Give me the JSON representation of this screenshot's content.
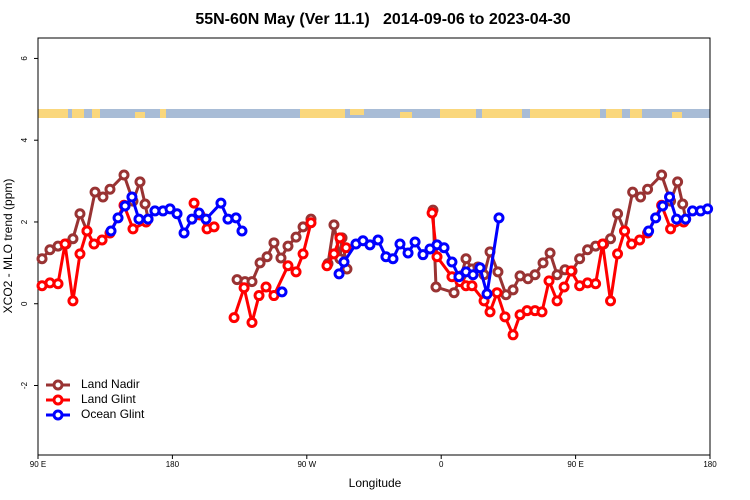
{
  "chart_data": {
    "type": "line",
    "title": "55N-60N May (Ver 11.1)   2014-09-06 to 2023-04-30",
    "x_label": "Longitude",
    "y_label": "XCO2 - MLO trend (ppm)",
    "xlim": [
      90,
      540
    ],
    "ylim": [
      -3.7,
      6.5
    ],
    "xticks": [
      {
        "value": 90,
        "label": "90 E"
      },
      {
        "value": 180,
        "label": "180"
      },
      {
        "value": 270,
        "label": "90 W"
      },
      {
        "value": 360,
        "label": "0"
      },
      {
        "value": 450,
        "label": "90 E"
      },
      {
        "value": 540,
        "label": "180"
      }
    ],
    "yticks": [
      -2,
      0,
      2,
      4,
      6
    ],
    "grid": false,
    "legend": "bottomleft",
    "series": [
      {
        "name": "Land Nadir",
        "color": "#993333",
        "x": [
          92.7,
          98.0,
          103.4,
          108.8,
          113.4,
          118.1,
          122.8,
          128.2,
          133.5,
          138.2,
          147.6,
          153.6,
          158.3,
          161.7,
          163.7,
          null,
          223.3,
          228.6,
          233.3,
          238.7,
          243.4,
          248.0,
          252.7,
          257.4,
          262.8,
          267.5,
          272.8,
          null,
          284.2,
          288.2,
          292.2,
          293.6,
          296.9,
          null,
          354.5,
          356.5,
          368.6,
          373.3,
          376.6,
          380.6,
          384.6,
          388.7,
          392.7,
          398.0,
          403.4,
          408.1,
          412.8,
          418.1,
          422.8,
          428.2,
          432.9,
          437.6,
          442.9,
          447.6,
          452.7,
          458.0,
          463.4,
          468.8,
          473.4,
          478.1,
          482.8,
          488.2,
          493.5,
          498.2,
          507.6,
          513.6,
          518.3,
          521.7,
          523.7
        ],
        "values": [
          1.1,
          1.32,
          1.41,
          1.46,
          1.59,
          2.2,
          1.78,
          2.73,
          2.61,
          2.8,
          3.15,
          2.51,
          2.98,
          2.44,
          2.07,
          null,
          0.59,
          0.54,
          0.54,
          1.0,
          1.15,
          1.49,
          1.12,
          1.41,
          1.63,
          1.88,
          2.07,
          null,
          0.98,
          1.93,
          1.1,
          1.61,
          0.85,
          null,
          2.29,
          0.41,
          0.27,
          0.68,
          1.1,
          0.85,
          0.9,
          0.71,
          1.27,
          0.78,
          0.22,
          0.34,
          0.68,
          0.61,
          0.71,
          1.0,
          1.24,
          0.71,
          0.83,
          0.8,
          1.1,
          1.32,
          1.41,
          1.46,
          1.59,
          2.2,
          1.78,
          2.73,
          2.61,
          2.8,
          3.15,
          2.51,
          2.98,
          2.44,
          2.07
        ]
      },
      {
        "name": "Land Glint",
        "color": "#ff0000",
        "x": [
          92.7,
          98.0,
          103.4,
          108.1,
          113.4,
          118.1,
          122.8,
          127.5,
          132.9,
          138.2,
          147.6,
          153.6,
          162.4,
          null,
          194.5,
          198.5,
          203.2,
          207.9,
          null,
          221.3,
          228.0,
          233.3,
          238.0,
          242.7,
          248.0,
          257.4,
          262.8,
          267.5,
          272.8,
          null,
          283.5,
          288.2,
          292.2,
          296.3,
          null,
          353.9,
          357.2,
          367.2,
          372.6,
          376.6,
          380.6,
          388.7,
          392.7,
          397.4,
          402.7,
          408.1,
          412.8,
          417.5,
          422.8,
          427.5,
          432.2,
          437.6,
          442.3,
          447.0,
          452.7,
          458.0,
          463.4,
          468.1,
          473.4,
          478.1,
          482.8,
          487.5,
          492.9,
          498.2,
          507.6,
          513.6,
          522.4
        ],
        "values": [
          0.44,
          0.51,
          0.49,
          1.46,
          0.07,
          1.22,
          1.78,
          1.46,
          1.56,
          1.73,
          2.41,
          1.83,
          2.0,
          null,
          2.46,
          2.17,
          1.83,
          1.88,
          null,
          -0.34,
          0.39,
          -0.46,
          0.2,
          0.41,
          0.2,
          0.93,
          0.78,
          1.22,
          1.98,
          null,
          0.93,
          1.22,
          1.61,
          1.37,
          null,
          2.22,
          1.15,
          0.66,
          0.54,
          0.44,
          0.44,
          0.07,
          -0.2,
          0.27,
          -0.32,
          -0.76,
          -0.27,
          -0.17,
          -0.17,
          -0.2,
          0.56,
          0.07,
          0.41,
          0.8,
          0.44,
          0.51,
          0.49,
          1.46,
          0.07,
          1.22,
          1.78,
          1.46,
          1.56,
          1.73,
          2.41,
          1.83,
          2.0
        ]
      },
      {
        "name": "Ocean Glint",
        "color": "#0000ff",
        "x": [
          138.9,
          143.6,
          148.3,
          152.9,
          157.6,
          163.7,
          168.3,
          173.7,
          178.4,
          183.1,
          187.8,
          193.1,
          197.8,
          202.5,
          212.5,
          217.2,
          222.6,
          226.6,
          null,
          253.4,
          null,
          291.6,
          294.9,
          302.9,
          307.6,
          312.3,
          317.7,
          323.0,
          327.7,
          332.4,
          337.8,
          342.5,
          347.8,
          352.5,
          357.2,
          361.9,
          367.2,
          371.9,
          376.6,
          381.3,
          386.0,
          390.7,
          398.7,
          null,
          498.9,
          503.6,
          508.3,
          512.9,
          517.6,
          523.7,
          528.3,
          533.7,
          538.4
        ],
        "values": [
          1.78,
          2.1,
          2.39,
          2.61,
          2.07,
          2.07,
          2.27,
          2.27,
          2.32,
          2.2,
          1.73,
          2.07,
          2.22,
          2.07,
          2.46,
          2.07,
          2.1,
          1.78,
          null,
          0.29,
          null,
          0.73,
          1.02,
          1.46,
          1.54,
          1.44,
          1.56,
          1.15,
          1.1,
          1.46,
          1.24,
          1.51,
          1.2,
          1.34,
          1.44,
          1.37,
          1.02,
          0.66,
          0.78,
          0.71,
          0.88,
          0.24,
          2.1,
          null,
          1.78,
          2.1,
          2.39,
          2.61,
          2.07,
          2.07,
          2.27,
          2.27,
          2.32
        ]
      }
    ]
  }
}
